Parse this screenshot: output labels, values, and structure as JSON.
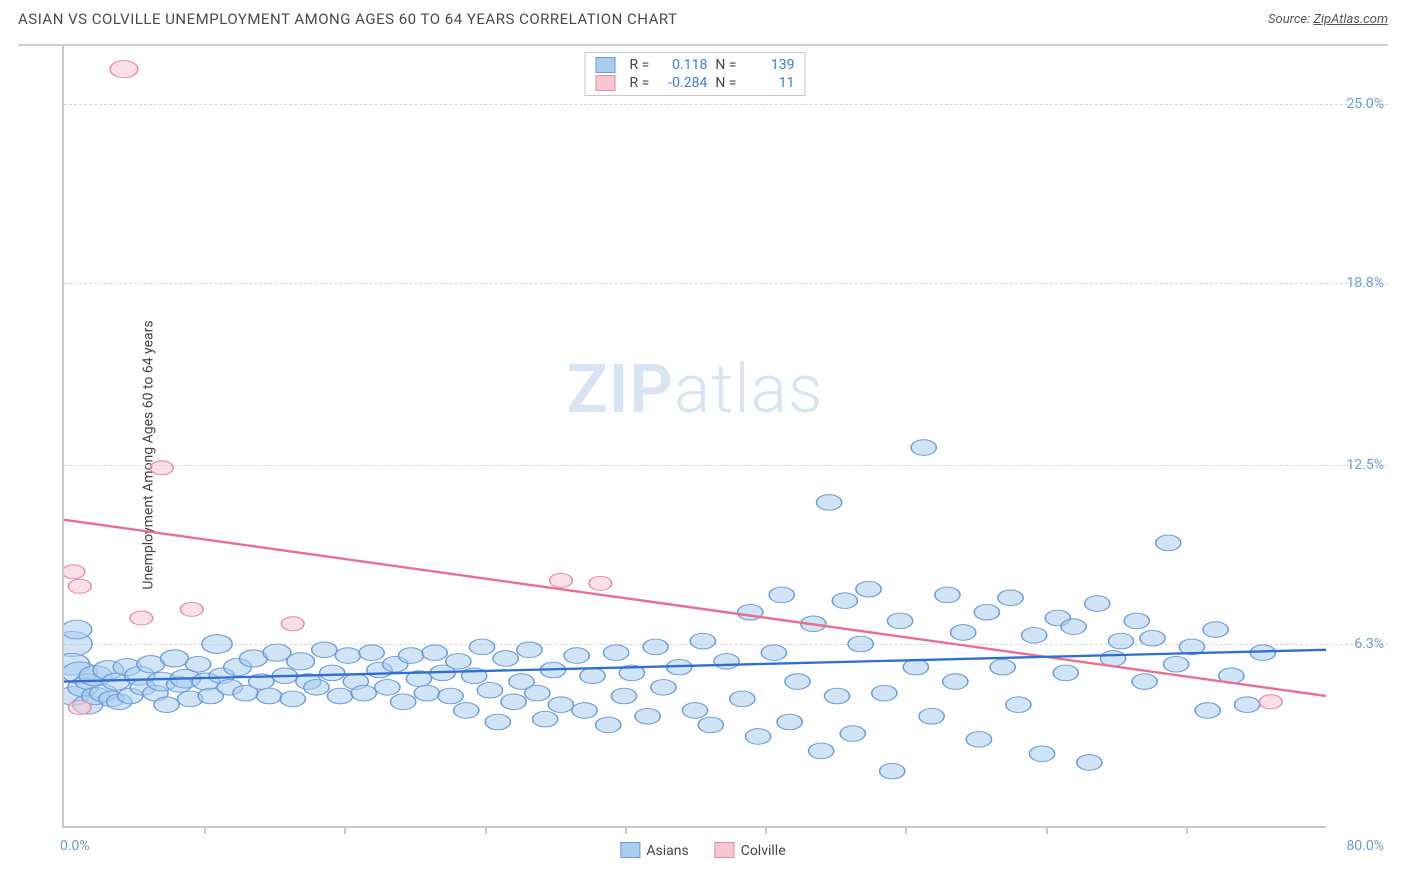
{
  "title": "ASIAN VS COLVILLE UNEMPLOYMENT AMONG AGES 60 TO 64 YEARS CORRELATION CHART",
  "source": {
    "label": "Source: ",
    "site": "ZipAtlas.com"
  },
  "y_axis_label": "Unemployment Among Ages 60 to 64 years",
  "watermark": {
    "bold": "ZIP",
    "rest": "atlas"
  },
  "colors": {
    "series_a_fill": "#a9cdef",
    "series_a_stroke": "#6b9bd8",
    "series_b_fill": "#f6c6d1",
    "series_b_stroke": "#e78aa3",
    "trend_a": "#2f6fd0",
    "trend_b": "#ea6f8f",
    "grid": "#d8d8d8",
    "axis": "#c8c8c8",
    "tick_text": "#6b9bd8",
    "text": "#444444",
    "bg": "#ffffff"
  },
  "chart": {
    "type": "scatter",
    "xlim": [
      0,
      80
    ],
    "ylim": [
      0,
      27
    ],
    "xticks_count": 9,
    "y_grid_values": [
      6.3,
      12.5,
      18.8,
      25.0
    ],
    "y_grid_labels": [
      "6.3%",
      "12.5%",
      "18.8%",
      "25.0%"
    ],
    "xlim_labels": [
      "0.0%",
      "80.0%"
    ],
    "legend_top": [
      {
        "r_label": "R =",
        "r_value": "0.118",
        "n_label": "N =",
        "n_value": "139",
        "swatch": "a"
      },
      {
        "r_label": "R =",
        "r_value": "-0.284",
        "n_label": "N =",
        "n_value": "11",
        "swatch": "b"
      }
    ],
    "legend_bottom": [
      {
        "label": "Asians",
        "swatch": "a"
      },
      {
        "label": "Colville",
        "swatch": "b"
      }
    ],
    "trend_lines": {
      "a": {
        "x1": 0,
        "y1": 5.0,
        "x2": 80,
        "y2": 6.1
      },
      "b": {
        "x1": 0,
        "y1": 10.6,
        "x2": 80,
        "y2": 4.5
      }
    },
    "series_a": [
      {
        "x": 0.5,
        "y": 6.3,
        "r": 16
      },
      {
        "x": 0.5,
        "y": 5.6,
        "r": 14
      },
      {
        "x": 0.8,
        "y": 6.8,
        "r": 12
      },
      {
        "x": 0.6,
        "y": 4.5,
        "r": 12
      },
      {
        "x": 1.0,
        "y": 5.3,
        "r": 14
      },
      {
        "x": 1.2,
        "y": 4.8,
        "r": 12
      },
      {
        "x": 1.5,
        "y": 5.0,
        "r": 10
      },
      {
        "x": 1.5,
        "y": 4.2,
        "r": 12
      },
      {
        "x": 2.0,
        "y": 5.2,
        "r": 13
      },
      {
        "x": 2.0,
        "y": 4.5,
        "r": 11
      },
      {
        "x": 2.5,
        "y": 4.6,
        "r": 11
      },
      {
        "x": 2.8,
        "y": 5.4,
        "r": 12
      },
      {
        "x": 3.0,
        "y": 4.4,
        "r": 10
      },
      {
        "x": 3.3,
        "y": 5.0,
        "r": 11
      },
      {
        "x": 3.5,
        "y": 4.3,
        "r": 10
      },
      {
        "x": 4.0,
        "y": 5.5,
        "r": 11
      },
      {
        "x": 4.2,
        "y": 4.5,
        "r": 10
      },
      {
        "x": 4.8,
        "y": 5.2,
        "r": 12
      },
      {
        "x": 5.0,
        "y": 4.8,
        "r": 10
      },
      {
        "x": 5.5,
        "y": 5.6,
        "r": 11
      },
      {
        "x": 5.8,
        "y": 4.6,
        "r": 10
      },
      {
        "x": 6.2,
        "y": 5.0,
        "r": 12
      },
      {
        "x": 6.5,
        "y": 4.2,
        "r": 10
      },
      {
        "x": 7.0,
        "y": 5.8,
        "r": 11
      },
      {
        "x": 7.3,
        "y": 4.9,
        "r": 10
      },
      {
        "x": 7.7,
        "y": 5.1,
        "r": 12
      },
      {
        "x": 8.0,
        "y": 4.4,
        "r": 10
      },
      {
        "x": 8.5,
        "y": 5.6,
        "r": 10
      },
      {
        "x": 9.0,
        "y": 5.0,
        "r": 11
      },
      {
        "x": 9.3,
        "y": 4.5,
        "r": 10
      },
      {
        "x": 9.7,
        "y": 6.3,
        "r": 12
      },
      {
        "x": 10.0,
        "y": 5.2,
        "r": 10
      },
      {
        "x": 10.5,
        "y": 4.8,
        "r": 10
      },
      {
        "x": 11.0,
        "y": 5.5,
        "r": 11
      },
      {
        "x": 11.5,
        "y": 4.6,
        "r": 10
      },
      {
        "x": 12.0,
        "y": 5.8,
        "r": 11
      },
      {
        "x": 12.5,
        "y": 5.0,
        "r": 10
      },
      {
        "x": 13.0,
        "y": 4.5,
        "r": 10
      },
      {
        "x": 13.5,
        "y": 6.0,
        "r": 11
      },
      {
        "x": 14.0,
        "y": 5.2,
        "r": 10
      },
      {
        "x": 14.5,
        "y": 4.4,
        "r": 10
      },
      {
        "x": 15.0,
        "y": 5.7,
        "r": 11
      },
      {
        "x": 15.5,
        "y": 5.0,
        "r": 10
      },
      {
        "x": 16.0,
        "y": 4.8,
        "r": 10
      },
      {
        "x": 16.5,
        "y": 6.1,
        "r": 10
      },
      {
        "x": 17.0,
        "y": 5.3,
        "r": 10
      },
      {
        "x": 17.5,
        "y": 4.5,
        "r": 10
      },
      {
        "x": 18.0,
        "y": 5.9,
        "r": 10
      },
      {
        "x": 18.5,
        "y": 5.0,
        "r": 10
      },
      {
        "x": 19.0,
        "y": 4.6,
        "r": 10
      },
      {
        "x": 19.5,
        "y": 6.0,
        "r": 10
      },
      {
        "x": 20.0,
        "y": 5.4,
        "r": 10
      },
      {
        "x": 20.5,
        "y": 4.8,
        "r": 10
      },
      {
        "x": 21.0,
        "y": 5.6,
        "r": 10
      },
      {
        "x": 21.5,
        "y": 4.3,
        "r": 10
      },
      {
        "x": 22.0,
        "y": 5.9,
        "r": 10
      },
      {
        "x": 22.5,
        "y": 5.1,
        "r": 10
      },
      {
        "x": 23.0,
        "y": 4.6,
        "r": 10
      },
      {
        "x": 23.5,
        "y": 6.0,
        "r": 10
      },
      {
        "x": 24.0,
        "y": 5.3,
        "r": 10
      },
      {
        "x": 24.5,
        "y": 4.5,
        "r": 10
      },
      {
        "x": 25.0,
        "y": 5.7,
        "r": 10
      },
      {
        "x": 25.5,
        "y": 4.0,
        "r": 10
      },
      {
        "x": 26.0,
        "y": 5.2,
        "r": 10
      },
      {
        "x": 26.5,
        "y": 6.2,
        "r": 10
      },
      {
        "x": 27.0,
        "y": 4.7,
        "r": 10
      },
      {
        "x": 27.5,
        "y": 3.6,
        "r": 10
      },
      {
        "x": 28.0,
        "y": 5.8,
        "r": 10
      },
      {
        "x": 28.5,
        "y": 4.3,
        "r": 10
      },
      {
        "x": 29.0,
        "y": 5.0,
        "r": 10
      },
      {
        "x": 29.5,
        "y": 6.1,
        "r": 10
      },
      {
        "x": 30.0,
        "y": 4.6,
        "r": 10
      },
      {
        "x": 30.5,
        "y": 3.7,
        "r": 10
      },
      {
        "x": 31.0,
        "y": 5.4,
        "r": 10
      },
      {
        "x": 31.5,
        "y": 4.2,
        "r": 10
      },
      {
        "x": 32.5,
        "y": 5.9,
        "r": 10
      },
      {
        "x": 33.0,
        "y": 4.0,
        "r": 10
      },
      {
        "x": 33.5,
        "y": 5.2,
        "r": 10
      },
      {
        "x": 34.5,
        "y": 3.5,
        "r": 10
      },
      {
        "x": 35.0,
        "y": 6.0,
        "r": 10
      },
      {
        "x": 35.5,
        "y": 4.5,
        "r": 10
      },
      {
        "x": 36.0,
        "y": 5.3,
        "r": 10
      },
      {
        "x": 37.0,
        "y": 3.8,
        "r": 10
      },
      {
        "x": 37.5,
        "y": 6.2,
        "r": 10
      },
      {
        "x": 38.0,
        "y": 4.8,
        "r": 10
      },
      {
        "x": 39.0,
        "y": 5.5,
        "r": 10
      },
      {
        "x": 40.0,
        "y": 4.0,
        "r": 10
      },
      {
        "x": 40.5,
        "y": 6.4,
        "r": 10
      },
      {
        "x": 41.0,
        "y": 3.5,
        "r": 10
      },
      {
        "x": 42.0,
        "y": 5.7,
        "r": 10
      },
      {
        "x": 43.0,
        "y": 4.4,
        "r": 10
      },
      {
        "x": 43.5,
        "y": 7.4,
        "r": 10
      },
      {
        "x": 44.0,
        "y": 3.1,
        "r": 10
      },
      {
        "x": 45.0,
        "y": 6.0,
        "r": 10
      },
      {
        "x": 45.5,
        "y": 8.0,
        "r": 10
      },
      {
        "x": 46.0,
        "y": 3.6,
        "r": 10
      },
      {
        "x": 46.5,
        "y": 5.0,
        "r": 10
      },
      {
        "x": 47.5,
        "y": 7.0,
        "r": 10
      },
      {
        "x": 48.0,
        "y": 2.6,
        "r": 10
      },
      {
        "x": 48.5,
        "y": 11.2,
        "r": 10
      },
      {
        "x": 49.0,
        "y": 4.5,
        "r": 10
      },
      {
        "x": 49.5,
        "y": 7.8,
        "r": 10
      },
      {
        "x": 50.0,
        "y": 3.2,
        "r": 10
      },
      {
        "x": 50.5,
        "y": 6.3,
        "r": 10
      },
      {
        "x": 51.0,
        "y": 8.2,
        "r": 10
      },
      {
        "x": 52.0,
        "y": 4.6,
        "r": 10
      },
      {
        "x": 52.5,
        "y": 1.9,
        "r": 10
      },
      {
        "x": 53.0,
        "y": 7.1,
        "r": 10
      },
      {
        "x": 54.0,
        "y": 5.5,
        "r": 10
      },
      {
        "x": 54.5,
        "y": 13.1,
        "r": 10
      },
      {
        "x": 55.0,
        "y": 3.8,
        "r": 10
      },
      {
        "x": 56.0,
        "y": 8.0,
        "r": 10
      },
      {
        "x": 56.5,
        "y": 5.0,
        "r": 10
      },
      {
        "x": 57.0,
        "y": 6.7,
        "r": 10
      },
      {
        "x": 58.0,
        "y": 3.0,
        "r": 10
      },
      {
        "x": 58.5,
        "y": 7.4,
        "r": 10
      },
      {
        "x": 59.5,
        "y": 5.5,
        "r": 10
      },
      {
        "x": 60.0,
        "y": 7.9,
        "r": 10
      },
      {
        "x": 60.5,
        "y": 4.2,
        "r": 10
      },
      {
        "x": 61.5,
        "y": 6.6,
        "r": 10
      },
      {
        "x": 62.0,
        "y": 2.5,
        "r": 10
      },
      {
        "x": 63.0,
        "y": 7.2,
        "r": 10
      },
      {
        "x": 63.5,
        "y": 5.3,
        "r": 10
      },
      {
        "x": 64.0,
        "y": 6.9,
        "r": 10
      },
      {
        "x": 65.0,
        "y": 2.2,
        "r": 10
      },
      {
        "x": 65.5,
        "y": 7.7,
        "r": 10
      },
      {
        "x": 66.5,
        "y": 5.8,
        "r": 10
      },
      {
        "x": 67.0,
        "y": 6.4,
        "r": 10
      },
      {
        "x": 68.0,
        "y": 7.1,
        "r": 10
      },
      {
        "x": 68.5,
        "y": 5.0,
        "r": 10
      },
      {
        "x": 69.0,
        "y": 6.5,
        "r": 10
      },
      {
        "x": 70.0,
        "y": 9.8,
        "r": 10
      },
      {
        "x": 70.5,
        "y": 5.6,
        "r": 10
      },
      {
        "x": 71.5,
        "y": 6.2,
        "r": 10
      },
      {
        "x": 72.5,
        "y": 4.0,
        "r": 10
      },
      {
        "x": 73.0,
        "y": 6.8,
        "r": 10
      },
      {
        "x": 74.0,
        "y": 5.2,
        "r": 10
      },
      {
        "x": 75.0,
        "y": 4.2,
        "r": 10
      },
      {
        "x": 76.0,
        "y": 6.0,
        "r": 10
      }
    ],
    "series_b": [
      {
        "x": 0.6,
        "y": 8.8,
        "r": 9
      },
      {
        "x": 1.0,
        "y": 8.3,
        "r": 9
      },
      {
        "x": 1.0,
        "y": 4.1,
        "r": 9
      },
      {
        "x": 3.8,
        "y": 26.2,
        "r": 11
      },
      {
        "x": 4.9,
        "y": 7.2,
        "r": 9
      },
      {
        "x": 6.2,
        "y": 12.4,
        "r": 9
      },
      {
        "x": 8.1,
        "y": 7.5,
        "r": 9
      },
      {
        "x": 14.5,
        "y": 7.0,
        "r": 9
      },
      {
        "x": 31.5,
        "y": 8.5,
        "r": 9
      },
      {
        "x": 34.0,
        "y": 8.4,
        "r": 9
      },
      {
        "x": 76.5,
        "y": 4.3,
        "r": 9
      }
    ]
  }
}
